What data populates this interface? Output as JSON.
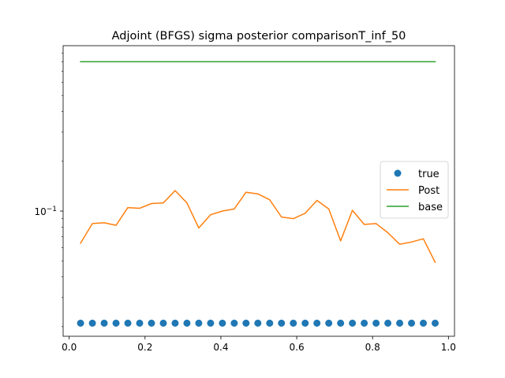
{
  "chart_data": {
    "type": "line",
    "title": "Adjoint (BFGS) sigma posterior comparisonT_inf_50",
    "xlabel": "",
    "ylabel": "",
    "xlim": [
      -0.016,
      1.016
    ],
    "ylim": [
      0.0175,
      1.0
    ],
    "yscale": "log",
    "xticks": [
      0.0,
      0.2,
      0.4,
      0.6,
      0.8,
      1.0
    ],
    "xtick_labels": [
      "0.0",
      "0.2",
      "0.4",
      "0.6",
      "0.8",
      "1.0"
    ],
    "yticks": [
      0.1
    ],
    "ytick_label_base": "10",
    "ytick_label_exp": "−1",
    "grid": false,
    "legend_placement": "center-right",
    "x": [
      0.03,
      0.0612,
      0.0923,
      0.1235,
      0.1547,
      0.1858,
      0.217,
      0.2482,
      0.2793,
      0.3105,
      0.3417,
      0.3728,
      0.404,
      0.4352,
      0.4663,
      0.4975,
      0.5287,
      0.5598,
      0.591,
      0.6222,
      0.6533,
      0.6845,
      0.7157,
      0.7468,
      0.778,
      0.8092,
      0.8403,
      0.8715,
      0.9027,
      0.9338,
      0.965
    ],
    "series": [
      {
        "name": "true",
        "kind": "scatter",
        "color": "#1f77b4",
        "values": [
          0.021,
          0.021,
          0.021,
          0.021,
          0.021,
          0.021,
          0.021,
          0.021,
          0.021,
          0.021,
          0.021,
          0.021,
          0.021,
          0.021,
          0.021,
          0.021,
          0.021,
          0.021,
          0.021,
          0.021,
          0.021,
          0.021,
          0.021,
          0.021,
          0.021,
          0.021,
          0.021,
          0.021,
          0.021,
          0.021,
          0.021
        ]
      },
      {
        "name": "Post",
        "kind": "line",
        "color": "#ff7f0e",
        "values": [
          0.064,
          0.084,
          0.085,
          0.082,
          0.105,
          0.104,
          0.111,
          0.112,
          0.133,
          0.112,
          0.079,
          0.095,
          0.1,
          0.103,
          0.13,
          0.127,
          0.117,
          0.092,
          0.09,
          0.097,
          0.116,
          0.103,
          0.066,
          0.101,
          0.083,
          0.084,
          0.074,
          0.063,
          0.065,
          0.068,
          0.049
        ]
      },
      {
        "name": "base",
        "kind": "line",
        "color": "#2ca02c",
        "values": [
          0.8,
          0.8,
          0.8,
          0.8,
          0.8,
          0.8,
          0.8,
          0.8,
          0.8,
          0.8,
          0.8,
          0.8,
          0.8,
          0.8,
          0.8,
          0.8,
          0.8,
          0.8,
          0.8,
          0.8,
          0.8,
          0.8,
          0.8,
          0.8,
          0.8,
          0.8,
          0.8,
          0.8,
          0.8,
          0.8,
          0.8
        ]
      }
    ]
  }
}
